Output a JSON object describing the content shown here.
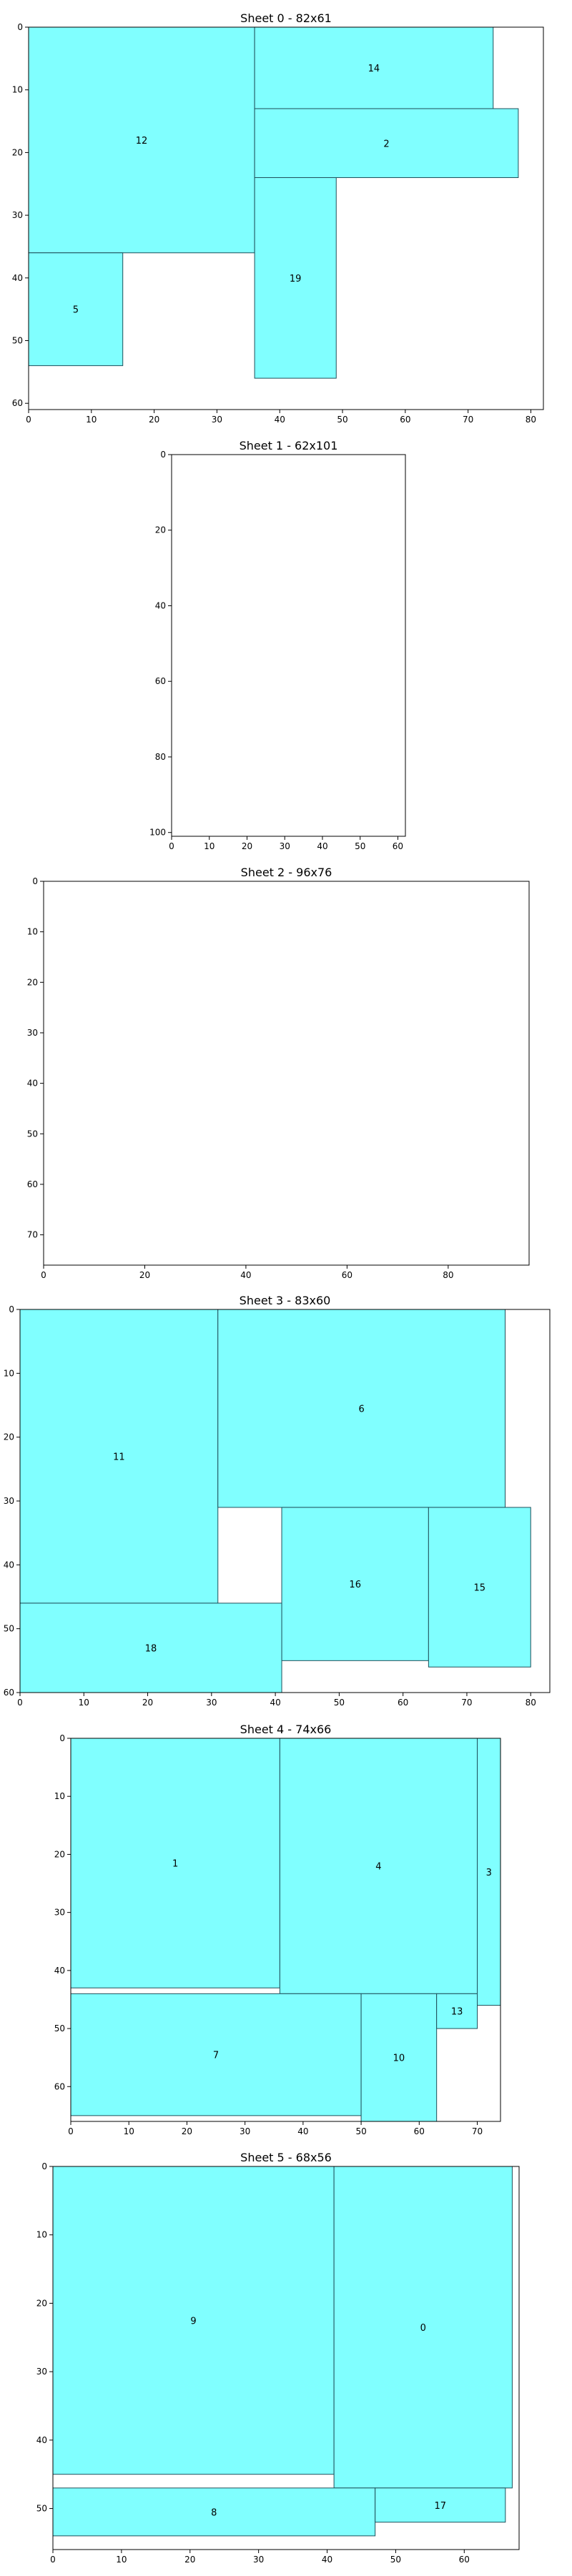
{
  "colors": {
    "piece_fill": "#80ffff",
    "piece_stroke": "#1f4f5a",
    "axis": "#000000",
    "background": "#ffffff"
  },
  "chart_data": [
    {
      "type": "packing",
      "title": "Sheet 0 - 82x61",
      "sheet_width": 82,
      "sheet_height": 61,
      "x_ticks": [
        0,
        10,
        20,
        30,
        40,
        50,
        60,
        70,
        80
      ],
      "y_ticks": [
        0,
        10,
        20,
        30,
        40,
        50,
        60
      ],
      "pieces": [
        {
          "id": "12",
          "x": 0,
          "y": 0,
          "w": 36,
          "h": 36
        },
        {
          "id": "14",
          "x": 36,
          "y": 0,
          "w": 38,
          "h": 13
        },
        {
          "id": "2",
          "x": 36,
          "y": 13,
          "w": 42,
          "h": 11
        },
        {
          "id": "19",
          "x": 36,
          "y": 24,
          "w": 13,
          "h": 32
        },
        {
          "id": "5",
          "x": 0,
          "y": 36,
          "w": 15,
          "h": 18
        }
      ]
    },
    {
      "type": "packing",
      "title": "Sheet 1 - 62x101",
      "sheet_width": 62,
      "sheet_height": 101,
      "x_ticks": [
        0,
        10,
        20,
        30,
        40,
        50,
        60
      ],
      "y_ticks": [
        0,
        20,
        40,
        60,
        80,
        100
      ],
      "pieces": []
    },
    {
      "type": "packing",
      "title": "Sheet 2 - 96x76",
      "sheet_width": 96,
      "sheet_height": 76,
      "x_ticks": [
        0,
        20,
        40,
        60,
        80
      ],
      "y_ticks": [
        0,
        10,
        20,
        30,
        40,
        50,
        60,
        70
      ],
      "pieces": []
    },
    {
      "type": "packing",
      "title": "Sheet 3 - 83x60",
      "sheet_width": 83,
      "sheet_height": 60,
      "x_ticks": [
        0,
        10,
        20,
        30,
        40,
        50,
        60,
        70,
        80
      ],
      "y_ticks": [
        0,
        10,
        20,
        30,
        40,
        50,
        60
      ],
      "pieces": [
        {
          "id": "11",
          "x": 0,
          "y": 0,
          "w": 31,
          "h": 46
        },
        {
          "id": "6",
          "x": 31,
          "y": 0,
          "w": 45,
          "h": 31
        },
        {
          "id": "16",
          "x": 41,
          "y": 31,
          "w": 23,
          "h": 24
        },
        {
          "id": "15",
          "x": 64,
          "y": 31,
          "w": 16,
          "h": 25
        },
        {
          "id": "18",
          "x": 0,
          "y": 46,
          "w": 41,
          "h": 14
        }
      ]
    },
    {
      "type": "packing",
      "title": "Sheet 4 - 74x66",
      "sheet_width": 74,
      "sheet_height": 66,
      "x_ticks": [
        0,
        10,
        20,
        30,
        40,
        50,
        60,
        70
      ],
      "y_ticks": [
        0,
        10,
        20,
        30,
        40,
        50,
        60
      ],
      "pieces": [
        {
          "id": "1",
          "x": 0,
          "y": 0,
          "w": 36,
          "h": 43
        },
        {
          "id": "4",
          "x": 36,
          "y": 0,
          "w": 34,
          "h": 44
        },
        {
          "id": "3",
          "x": 70,
          "y": 0,
          "w": 4,
          "h": 46
        },
        {
          "id": "7",
          "x": 0,
          "y": 44,
          "w": 50,
          "h": 21
        },
        {
          "id": "10",
          "x": 50,
          "y": 44,
          "w": 13,
          "h": 22
        },
        {
          "id": "13",
          "x": 63,
          "y": 44,
          "w": 7,
          "h": 6
        }
      ]
    },
    {
      "type": "packing",
      "title": "Sheet 5 - 68x56",
      "sheet_width": 68,
      "sheet_height": 56,
      "x_ticks": [
        0,
        10,
        20,
        30,
        40,
        50,
        60
      ],
      "y_ticks": [
        0,
        10,
        20,
        30,
        40,
        50
      ],
      "pieces": [
        {
          "id": "9",
          "x": 0,
          "y": 0,
          "w": 41,
          "h": 45
        },
        {
          "id": "0",
          "x": 41,
          "y": 0,
          "w": 26,
          "h": 47
        },
        {
          "id": "8",
          "x": 0,
          "y": 47,
          "w": 47,
          "h": 7
        },
        {
          "id": "17",
          "x": 47,
          "y": 47,
          "w": 19,
          "h": 5
        }
      ]
    }
  ]
}
